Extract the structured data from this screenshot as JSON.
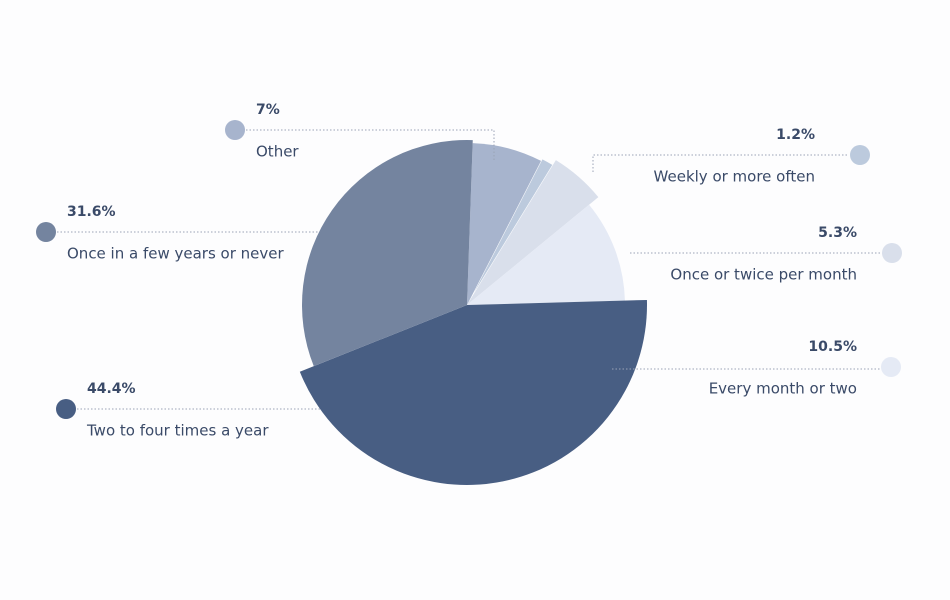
{
  "chart_data": {
    "type": "pie",
    "categories": [
      "Other",
      "Weekly or more often",
      "Once or twice per month",
      "Every month or two",
      "Two to four times a year",
      "Once in a few years or never"
    ],
    "values": [
      7,
      1.2,
      5.3,
      10.5,
      44.4,
      31.6
    ],
    "value_labels": [
      "7%",
      "1.2%",
      "5.3%",
      "10.5%",
      "44.4%",
      "31.6%"
    ],
    "colors": [
      "#a7b4cd",
      "#bccadd",
      "#d9dfeb",
      "#e5eaf5",
      "#485e83",
      "#74849f"
    ]
  }
}
